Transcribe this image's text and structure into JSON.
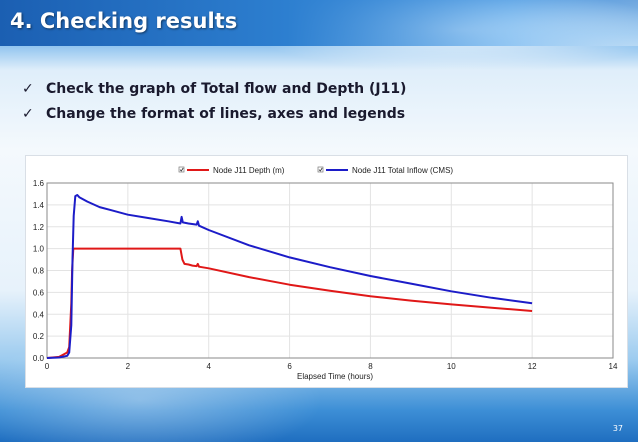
{
  "slide": {
    "title": "4. Checking results",
    "bullets": [
      "Check the graph of Total flow and Depth (J11)",
      "Change the format of lines, axes and legends"
    ],
    "check_glyph": "✓",
    "page_number": "37"
  },
  "chart_data": {
    "type": "line",
    "title": "",
    "xlabel": "Elapsed Time (hours)",
    "ylabel": "",
    "xlim": [
      0,
      14
    ],
    "ylim": [
      0,
      1.6
    ],
    "xticks": [
      0,
      2,
      4,
      6,
      8,
      10,
      12,
      14
    ],
    "yticks": [
      0.0,
      0.2,
      0.4,
      0.6,
      0.8,
      1.0,
      1.2,
      1.4,
      1.6
    ],
    "ytick_labels": [
      "0.0",
      "0.2",
      "0.4",
      "0.6",
      "0.8",
      "1.0",
      "1.2",
      "1.4",
      "1.6"
    ],
    "grid": true,
    "legend_position": "top",
    "series": [
      {
        "name": "Node J11 Depth (m)",
        "color": "#e01818",
        "points": [
          [
            0,
            0
          ],
          [
            0.3,
            0.01
          ],
          [
            0.5,
            0.05
          ],
          [
            0.55,
            0.1
          ],
          [
            0.6,
            0.5
          ],
          [
            0.62,
            0.8
          ],
          [
            0.65,
            1.0
          ],
          [
            1.0,
            1.0
          ],
          [
            2.0,
            1.0
          ],
          [
            3.0,
            1.0
          ],
          [
            3.3,
            1.0
          ],
          [
            3.35,
            0.9
          ],
          [
            3.4,
            0.86
          ],
          [
            3.5,
            0.855
          ],
          [
            3.6,
            0.845
          ],
          [
            3.7,
            0.84
          ],
          [
            3.73,
            0.86
          ],
          [
            3.76,
            0.835
          ],
          [
            4.0,
            0.82
          ],
          [
            5.0,
            0.74
          ],
          [
            6.0,
            0.67
          ],
          [
            7.0,
            0.615
          ],
          [
            8.0,
            0.565
          ],
          [
            9.0,
            0.525
          ],
          [
            10.0,
            0.49
          ],
          [
            11.0,
            0.46
          ],
          [
            12.0,
            0.43
          ]
        ]
      },
      {
        "name": "Node J11 Total Inflow (CMS)",
        "color": "#1c1cc8",
        "points": [
          [
            0,
            0
          ],
          [
            0.3,
            0.005
          ],
          [
            0.5,
            0.02
          ],
          [
            0.55,
            0.05
          ],
          [
            0.6,
            0.3
          ],
          [
            0.63,
            0.9
          ],
          [
            0.66,
            1.3
          ],
          [
            0.7,
            1.48
          ],
          [
            0.75,
            1.49
          ],
          [
            0.8,
            1.47
          ],
          [
            1.0,
            1.43
          ],
          [
            1.3,
            1.38
          ],
          [
            1.6,
            1.35
          ],
          [
            2.0,
            1.31
          ],
          [
            2.5,
            1.28
          ],
          [
            3.0,
            1.25
          ],
          [
            3.3,
            1.23
          ],
          [
            3.33,
            1.29
          ],
          [
            3.36,
            1.24
          ],
          [
            3.5,
            1.23
          ],
          [
            3.7,
            1.22
          ],
          [
            3.73,
            1.25
          ],
          [
            3.76,
            1.21
          ],
          [
            4.0,
            1.17
          ],
          [
            5.0,
            1.03
          ],
          [
            6.0,
            0.92
          ],
          [
            7.0,
            0.83
          ],
          [
            8.0,
            0.75
          ],
          [
            9.0,
            0.68
          ],
          [
            10.0,
            0.61
          ],
          [
            11.0,
            0.55
          ],
          [
            12.0,
            0.5
          ]
        ]
      }
    ]
  }
}
